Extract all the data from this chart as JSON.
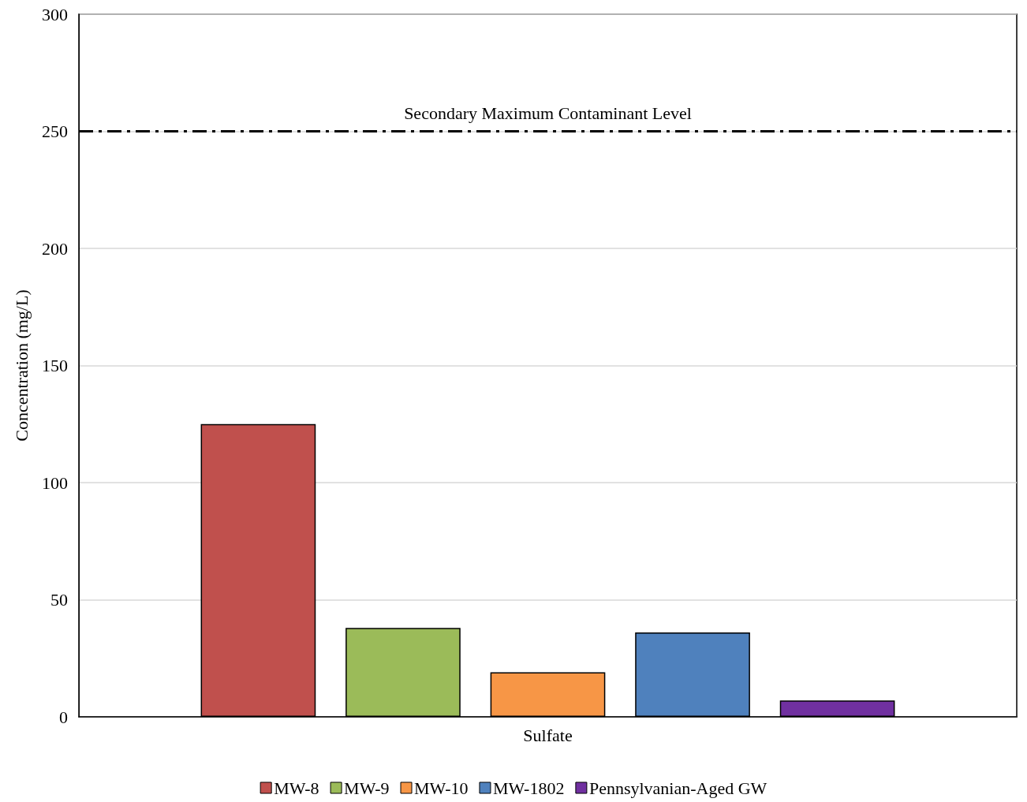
{
  "chart_data": {
    "type": "bar",
    "ylabel": "Concentration (mg/L)",
    "categories": [
      "Sulfate"
    ],
    "series": [
      {
        "name": "MW-8",
        "color": "#c0504d",
        "values": [
          125
        ]
      },
      {
        "name": "MW-9",
        "color": "#9bbb59",
        "values": [
          38
        ]
      },
      {
        "name": "MW-10",
        "color": "#f79646",
        "values": [
          19
        ]
      },
      {
        "name": "MW-1802",
        "color": "#4f81bd",
        "values": [
          36
        ]
      },
      {
        "name": "Pennsylvanian-Aged GW",
        "color": "#7030a0",
        "values": [
          7
        ]
      }
    ],
    "ylim": [
      0,
      300
    ],
    "yticks": [
      0,
      50,
      100,
      150,
      200,
      250,
      300
    ],
    "grid": "y",
    "legend": "bottom",
    "ref_lines": [
      {
        "axis": "y",
        "value": 250,
        "label": "Secondary Maximum Contaminant Level",
        "color": "#000000",
        "line_style": "dashed"
      }
    ]
  }
}
